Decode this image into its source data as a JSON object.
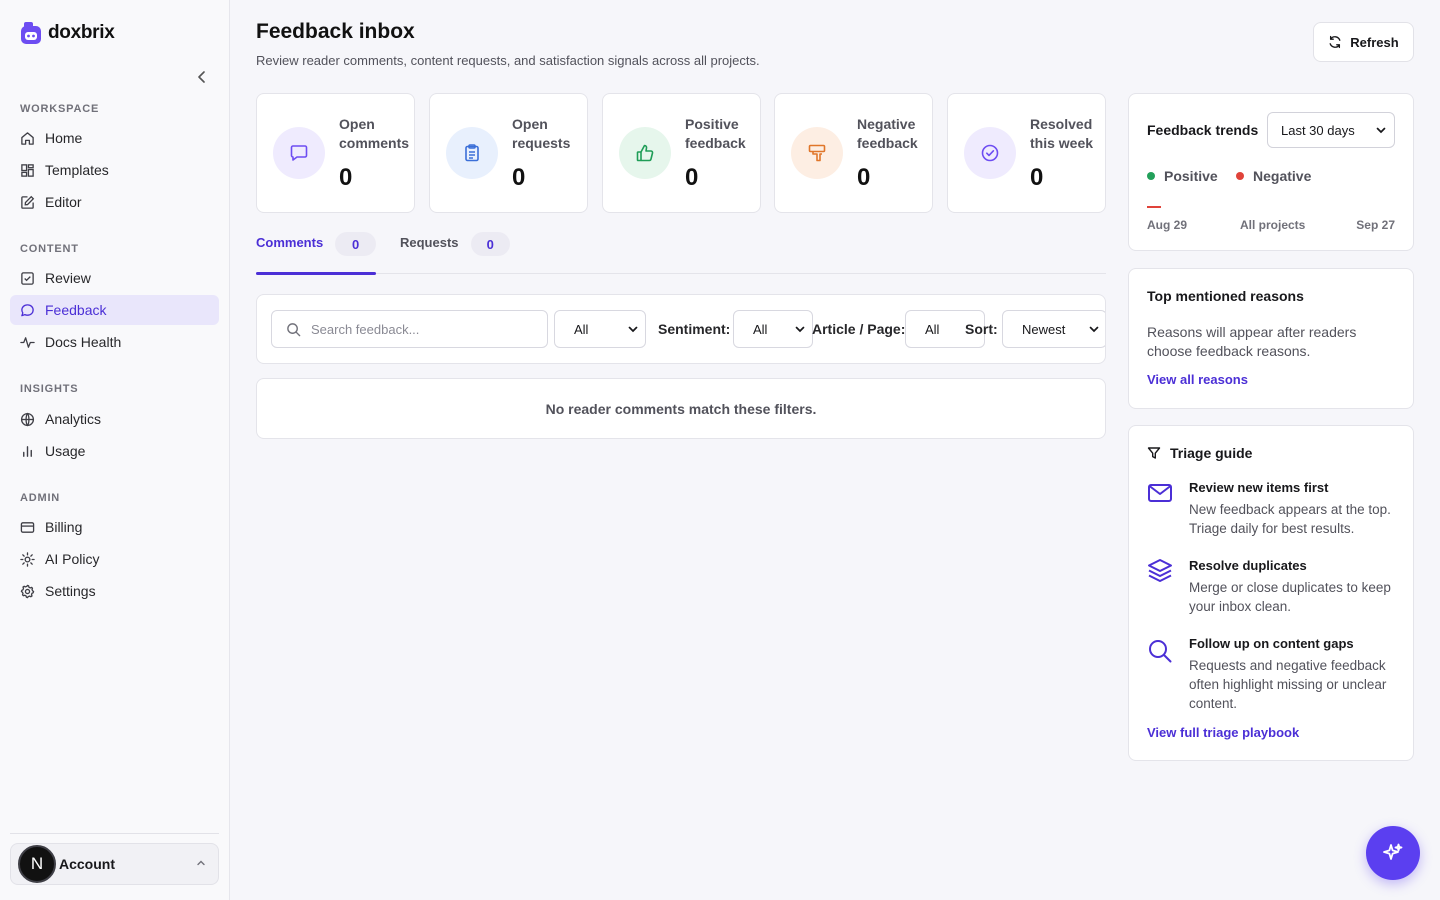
{
  "brand": {
    "name": "doxbrix",
    "accent": "#4b2fd6"
  },
  "sidebar": {
    "sections": [
      {
        "heading": "WORKSPACE",
        "items": [
          {
            "label": "Home",
            "icon": "home-icon"
          },
          {
            "label": "Templates",
            "icon": "templates-icon"
          },
          {
            "label": "Editor",
            "icon": "editor-icon"
          }
        ]
      },
      {
        "heading": "CONTENT",
        "items": [
          {
            "label": "Review",
            "icon": "review-icon"
          },
          {
            "label": "Feedback",
            "icon": "feedback-icon",
            "active": true
          },
          {
            "label": "Docs Health",
            "icon": "pulse-icon"
          }
        ]
      },
      {
        "heading": "INSIGHTS",
        "items": [
          {
            "label": "Analytics",
            "icon": "globe-icon"
          },
          {
            "label": "Usage",
            "icon": "bar-chart-icon"
          }
        ]
      },
      {
        "heading": "ADMIN",
        "items": [
          {
            "label": "Billing",
            "icon": "credit-card-icon"
          },
          {
            "label": "AI Policy",
            "icon": "sun-icon"
          },
          {
            "label": "Settings",
            "icon": "gear-icon"
          }
        ]
      }
    ],
    "account": {
      "initial": "N",
      "label": "Account"
    }
  },
  "header": {
    "title": "Feedback inbox",
    "subtitle": "Review reader comments, content requests, and satisfaction signals across all projects.",
    "refresh_label": "Refresh"
  },
  "stats": [
    {
      "label": "Open comments",
      "value": "0",
      "icon": "comment-icon",
      "color": "#6d4df2",
      "bg": "#efebfe"
    },
    {
      "label": "Open requests",
      "value": "0",
      "icon": "clipboard-icon",
      "color": "#3b6fd8",
      "bg": "#e8f0fd"
    },
    {
      "label": "Positive feedback",
      "value": "0",
      "icon": "thumbs-up-icon",
      "color": "#1f9d57",
      "bg": "#e6f6ec"
    },
    {
      "label": "Negative feedback",
      "value": "0",
      "icon": "thumbs-down-icon",
      "color": "#e0762a",
      "bg": "#fdeee3"
    },
    {
      "label": "Resolved this week",
      "value": "0",
      "icon": "check-circle-icon",
      "color": "#6d4df2",
      "bg": "#efebfe"
    }
  ],
  "tabs": [
    {
      "label": "Comments",
      "count": "0",
      "active": true
    },
    {
      "label": "Requests",
      "count": "0"
    }
  ],
  "filters": {
    "search_placeholder": "Search feedback...",
    "type_value": "All",
    "sentiment_label": "Sentiment:",
    "sentiment_value": "All",
    "article_label": "Article / Page:",
    "article_value": "All",
    "sort_label": "Sort:",
    "sort_value": "Newest"
  },
  "empty_message": "No reader comments match these filters.",
  "trends": {
    "title": "Feedback trends",
    "range_value": "Last 30 days",
    "legend": [
      {
        "label": "Positive",
        "color": "#22a05a"
      },
      {
        "label": "Negative",
        "color": "#e0433a"
      }
    ],
    "axis_start": "Aug 29",
    "axis_middle": "All projects",
    "axis_end": "Sep 27"
  },
  "reasons": {
    "title": "Top mentioned reasons",
    "text": "Reasons will appear after readers choose feedback reasons.",
    "link": "View all reasons"
  },
  "guide": {
    "title": "Triage guide",
    "items": [
      {
        "title": "Review new items first",
        "desc": "New feedback appears at the top. Triage daily for best results.",
        "icon": "mail-icon"
      },
      {
        "title": "Resolve duplicates",
        "desc": "Merge or close duplicates to keep your inbox clean.",
        "icon": "layers-icon"
      },
      {
        "title": "Follow up on content gaps",
        "desc": "Requests and negative feedback often highlight missing or unclear content.",
        "icon": "search-icon"
      }
    ],
    "link": "View full triage playbook"
  }
}
